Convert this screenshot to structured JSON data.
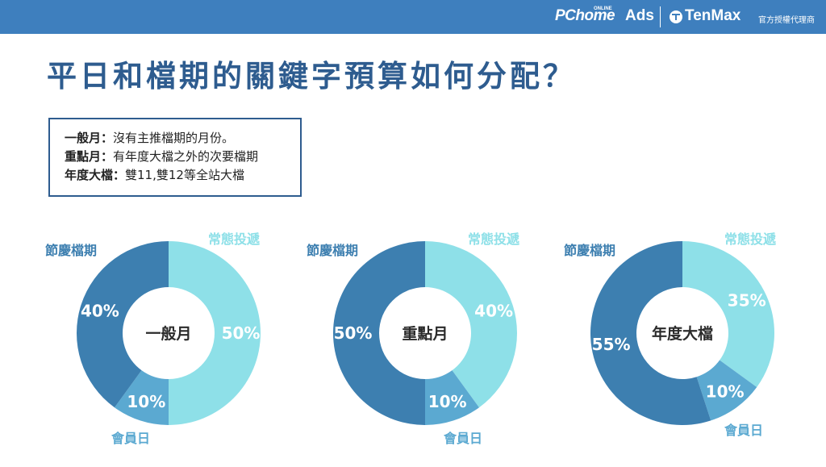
{
  "header": {
    "brand_pchome": "PChome",
    "brand_online": "ONLINE",
    "brand_ads": "Ads",
    "brand_tenmax": "TenMax",
    "brand_agent": "官方授權代理商",
    "logo_icon": "tenmax-logo-icon",
    "background_color": "#3e7fbe"
  },
  "title": "平日和檔期的關鍵字預算如何分配？",
  "legend": {
    "items": [
      {
        "term": "一般月：",
        "desc": "沒有主推檔期的月份。"
      },
      {
        "term": "重點月：",
        "desc": "有年度大檔之外的次要檔期"
      },
      {
        "term": "年度大檔：",
        "desc": "雙11,雙12等全站大檔"
      }
    ]
  },
  "colors": {
    "常態投遞": "#8ee0e8",
    "會員日": "#5ba9d1",
    "節慶檔期": "#3d7fb0",
    "title": "#2e5c8f"
  },
  "chart_data": [
    {
      "type": "pie",
      "title": "一般月",
      "categories": [
        "常態投遞",
        "會員日",
        "節慶檔期"
      ],
      "values": [
        50,
        10,
        40
      ],
      "value_labels": [
        "50%",
        "10%",
        "40%"
      ]
    },
    {
      "type": "pie",
      "title": "重點月",
      "categories": [
        "常態投遞",
        "會員日",
        "節慶檔期"
      ],
      "values": [
        40,
        10,
        50
      ],
      "value_labels": [
        "40%",
        "10%",
        "50%"
      ]
    },
    {
      "type": "pie",
      "title": "年度大檔",
      "categories": [
        "常態投遞",
        "會員日",
        "節慶檔期"
      ],
      "values": [
        35,
        10,
        55
      ],
      "value_labels": [
        "35%",
        "10%",
        "55%"
      ]
    }
  ]
}
